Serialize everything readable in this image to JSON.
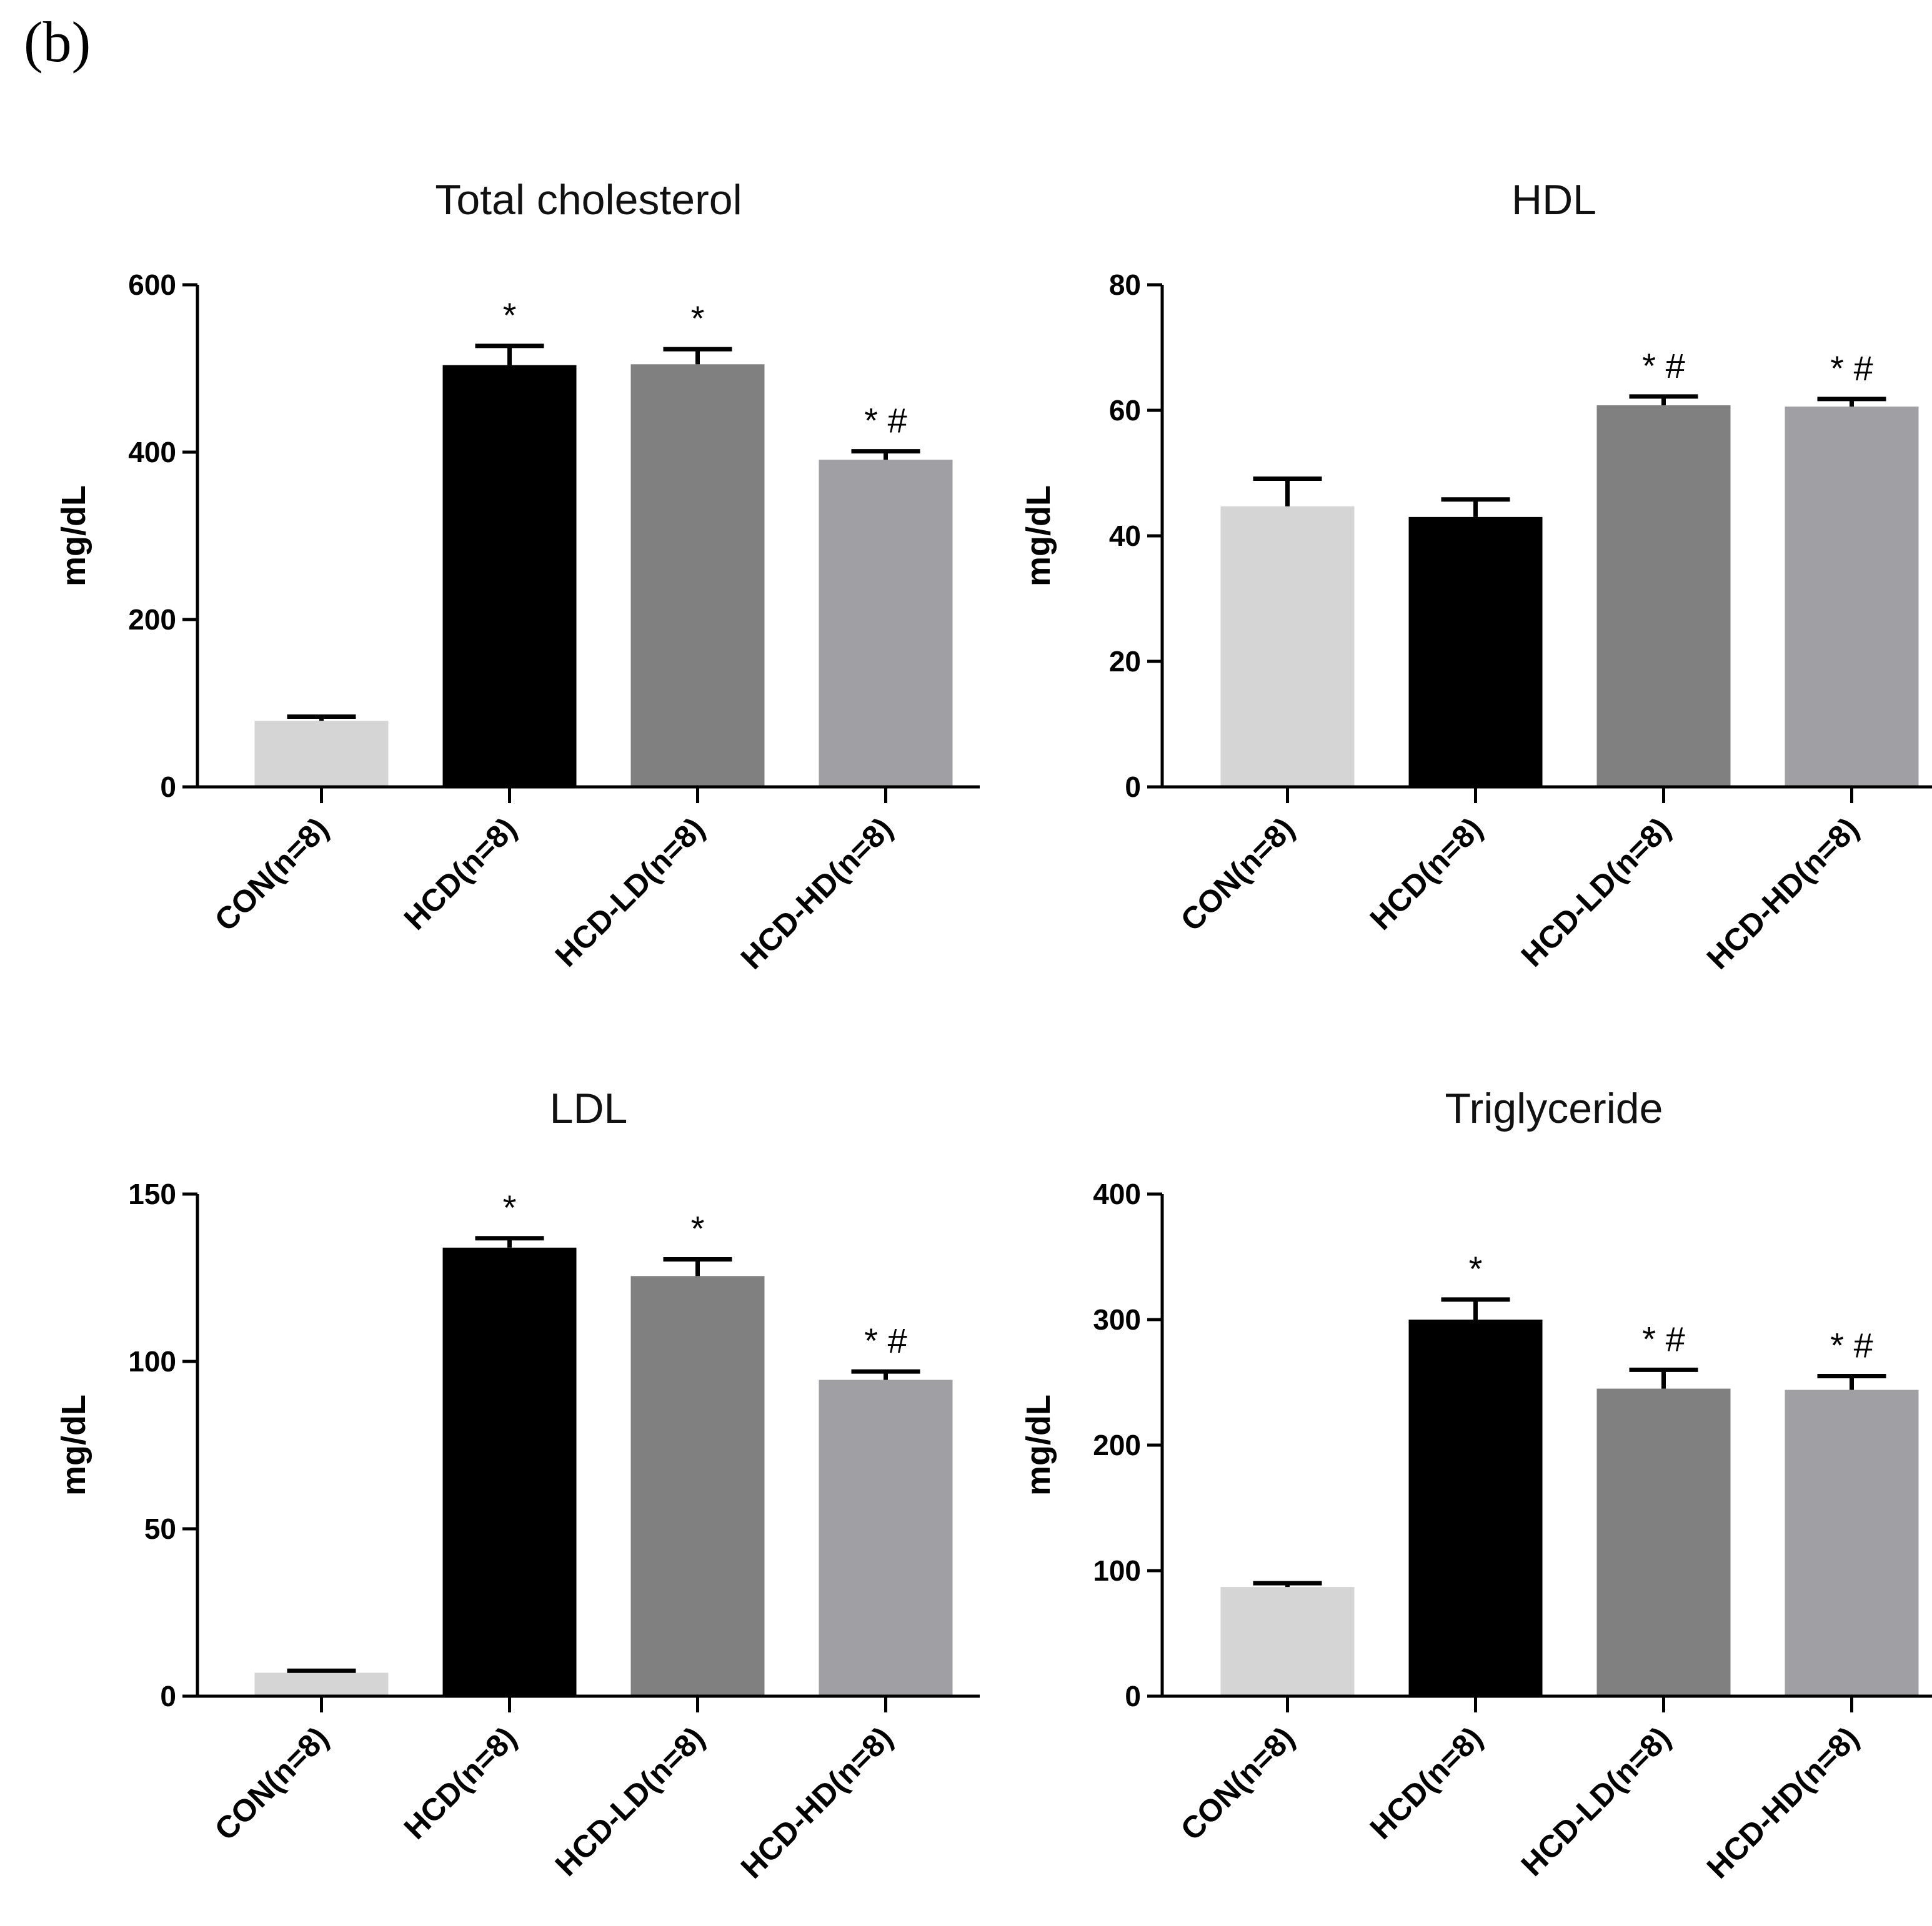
{
  "figure": {
    "panel_label": "(b)"
  },
  "colors": {
    "CON(n=8)": "#d5d5d5",
    "HCD(n=8)": "#000000",
    "HCD-LD(n=8)": "#808080",
    "HCD-HD(n=8)": "#a0a0a4"
  },
  "chart_data": [
    {
      "type": "bar",
      "title": "Total cholesterol",
      "ylabel": "mg/dL",
      "xlabel": "",
      "categories": [
        "CON(n=8)",
        "HCD(n=8)",
        "HCD-LD(n=8)",
        "HCD-HD(n=8)"
      ],
      "values": [
        79,
        504,
        505,
        391
      ],
      "errors": [
        5,
        23,
        18,
        10
      ],
      "significance": [
        "",
        "*",
        "*",
        "* #"
      ],
      "ylim": [
        0,
        600
      ],
      "yticks": [
        0,
        200,
        400,
        600
      ],
      "grid": false
    },
    {
      "type": "bar",
      "title": "HDL",
      "ylabel": "mg/dL",
      "xlabel": "",
      "categories": [
        "CON(n=8)",
        "HCD(n=8)",
        "HCD-LD(n=8)",
        "HCD-HD(n=8)"
      ],
      "values": [
        44.7,
        43,
        60.8,
        60.6
      ],
      "errors": [
        4.4,
        2.8,
        1.4,
        1.2
      ],
      "significance": [
        "",
        "",
        "* #",
        "* #"
      ],
      "ylim": [
        0,
        80
      ],
      "yticks": [
        0,
        20,
        40,
        60,
        80
      ],
      "grid": false
    },
    {
      "type": "bar",
      "title": "LDL",
      "ylabel": "mg/dL",
      "xlabel": "",
      "categories": [
        "CON(n=8)",
        "HCD(n=8)",
        "HCD-LD(n=8)",
        "HCD-HD(n=8)"
      ],
      "values": [
        7,
        134,
        125.5,
        94.5
      ],
      "errors": [
        0.6,
        2.8,
        5,
        2.5
      ],
      "significance": [
        "",
        "*",
        "*",
        "* #"
      ],
      "ylim": [
        0,
        150
      ],
      "yticks": [
        0,
        50,
        100,
        150
      ],
      "grid": false
    },
    {
      "type": "bar",
      "title": "Triglyceride",
      "ylabel": "mg/dL",
      "xlabel": "",
      "categories": [
        "CON(n=8)",
        "HCD(n=8)",
        "HCD-LD(n=8)",
        "HCD-HD(n=8)"
      ],
      "values": [
        87,
        300,
        245,
        244
      ],
      "errors": [
        3,
        16,
        15,
        11
      ],
      "significance": [
        "",
        "*",
        "* #",
        "* #"
      ],
      "ylim": [
        0,
        400
      ],
      "yticks": [
        0,
        100,
        200,
        300,
        400
      ],
      "grid": false
    }
  ]
}
